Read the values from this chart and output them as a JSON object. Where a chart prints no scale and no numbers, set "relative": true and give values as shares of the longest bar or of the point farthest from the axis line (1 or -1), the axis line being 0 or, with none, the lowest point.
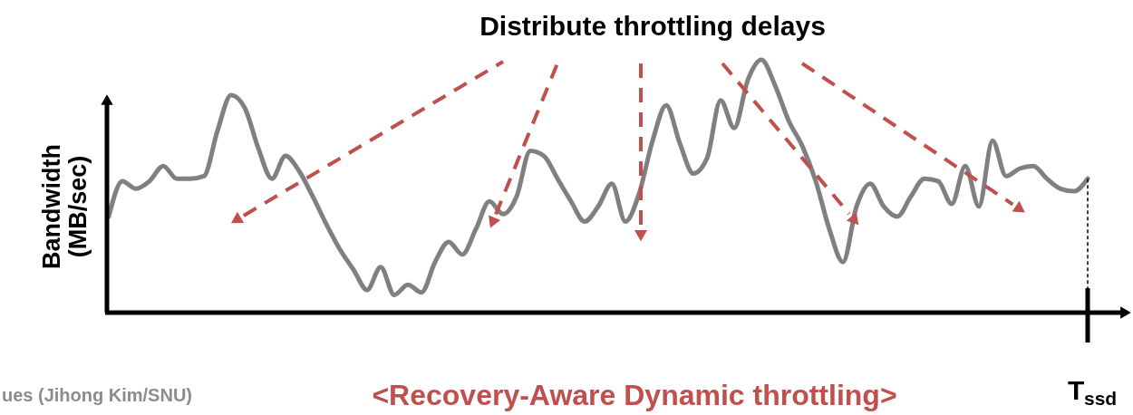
{
  "chart_data": {
    "type": "line",
    "relative": true,
    "title": "Distribute throttling delays",
    "ylabel": "Bandwidth (MB/sec)",
    "categories": [
      null,
      null,
      null,
      null,
      null,
      null,
      null,
      null,
      null,
      null,
      null,
      null,
      null,
      null,
      null,
      null,
      null,
      null,
      null,
      null,
      null,
      null,
      null,
      null,
      null,
      null,
      null,
      null,
      null,
      null,
      null,
      null,
      null,
      null,
      null,
      null,
      null,
      null,
      null,
      null,
      null,
      null,
      null,
      null,
      null,
      null,
      null,
      null,
      null,
      null,
      null,
      null,
      null,
      null,
      null,
      null,
      null,
      null,
      null,
      null,
      null,
      null,
      null,
      null,
      null,
      null,
      null,
      null,
      null,
      null,
      null,
      null,
      null
    ],
    "series": [
      {
        "color": "#808080",
        "values": [
          0.38,
          0.52,
          0.49,
          0.52,
          0.58,
          0.53,
          0.53,
          0.54,
          0.72,
          0.86,
          0.81,
          0.65,
          0.53,
          0.62,
          0.56,
          0.46,
          0.35,
          0.25,
          0.17,
          0.09,
          0.18,
          0.07,
          0.11,
          0.08,
          0.2,
          0.28,
          0.23,
          0.33,
          0.44,
          0.39,
          0.46,
          0.64,
          0.62,
          0.53,
          0.44,
          0.36,
          0.42,
          0.51,
          0.36,
          0.47,
          0.68,
          0.82,
          0.67,
          0.55,
          0.61,
          0.84,
          0.73,
          0.92,
          1,
          0.9,
          0.76,
          0.66,
          0.52,
          0.33,
          0.2,
          0.42,
          0.51,
          0.42,
          0.38,
          0.46,
          0.53,
          0.52,
          0.43,
          0.58,
          0.42,
          0.68,
          0.54,
          0.57,
          0.58,
          0.53,
          0.49,
          0.48,
          0.53
        ]
      }
    ],
    "annotations": [
      "<Recovery-Aware Dynamic throttling>",
      "ues (Jihong Kim/SNU)",
      "T$_{ssd}$"
    ]
  }
}
